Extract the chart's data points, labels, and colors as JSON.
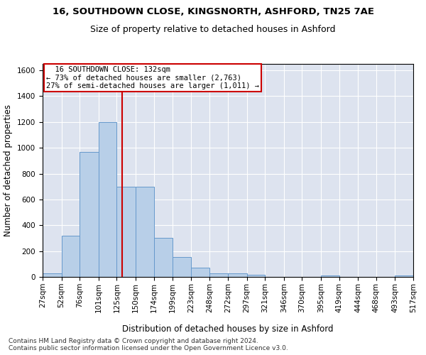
{
  "title1": "16, SOUTHDOWN CLOSE, KINGSNORTH, ASHFORD, TN25 7AE",
  "title2": "Size of property relative to detached houses in Ashford",
  "xlabel": "Distribution of detached houses by size in Ashford",
  "ylabel": "Number of detached properties",
  "footer1": "Contains HM Land Registry data © Crown copyright and database right 2024.",
  "footer2": "Contains public sector information licensed under the Open Government Licence v3.0.",
  "annotation_line1": "  16 SOUTHDOWN CLOSE: 132sqm  ",
  "annotation_line2": "← 73% of detached houses are smaller (2,763)",
  "annotation_line3": "27% of semi-detached houses are larger (1,011) →",
  "bar_color": "#b8cfe8",
  "bar_edge_color": "#6699cc",
  "vline_color": "#cc0000",
  "vline_x": 132,
  "background_color": "#dde3ef",
  "bin_edges": [
    27,
    52,
    76,
    101,
    125,
    150,
    174,
    199,
    223,
    248,
    272,
    297,
    321,
    346,
    370,
    395,
    419,
    444,
    468,
    493,
    517
  ],
  "bar_heights": [
    30,
    320,
    970,
    1200,
    700,
    700,
    305,
    155,
    70,
    30,
    25,
    15,
    0,
    0,
    0,
    10,
    0,
    0,
    0,
    10
  ],
  "ylim": [
    0,
    1650
  ],
  "yticks": [
    0,
    200,
    400,
    600,
    800,
    1000,
    1200,
    1400,
    1600
  ],
  "title1_fontsize": 9.5,
  "title2_fontsize": 9,
  "axis_label_fontsize": 8.5,
  "tick_fontsize": 7.5,
  "annotation_fontsize": 7.5,
  "footer_fontsize": 6.5
}
